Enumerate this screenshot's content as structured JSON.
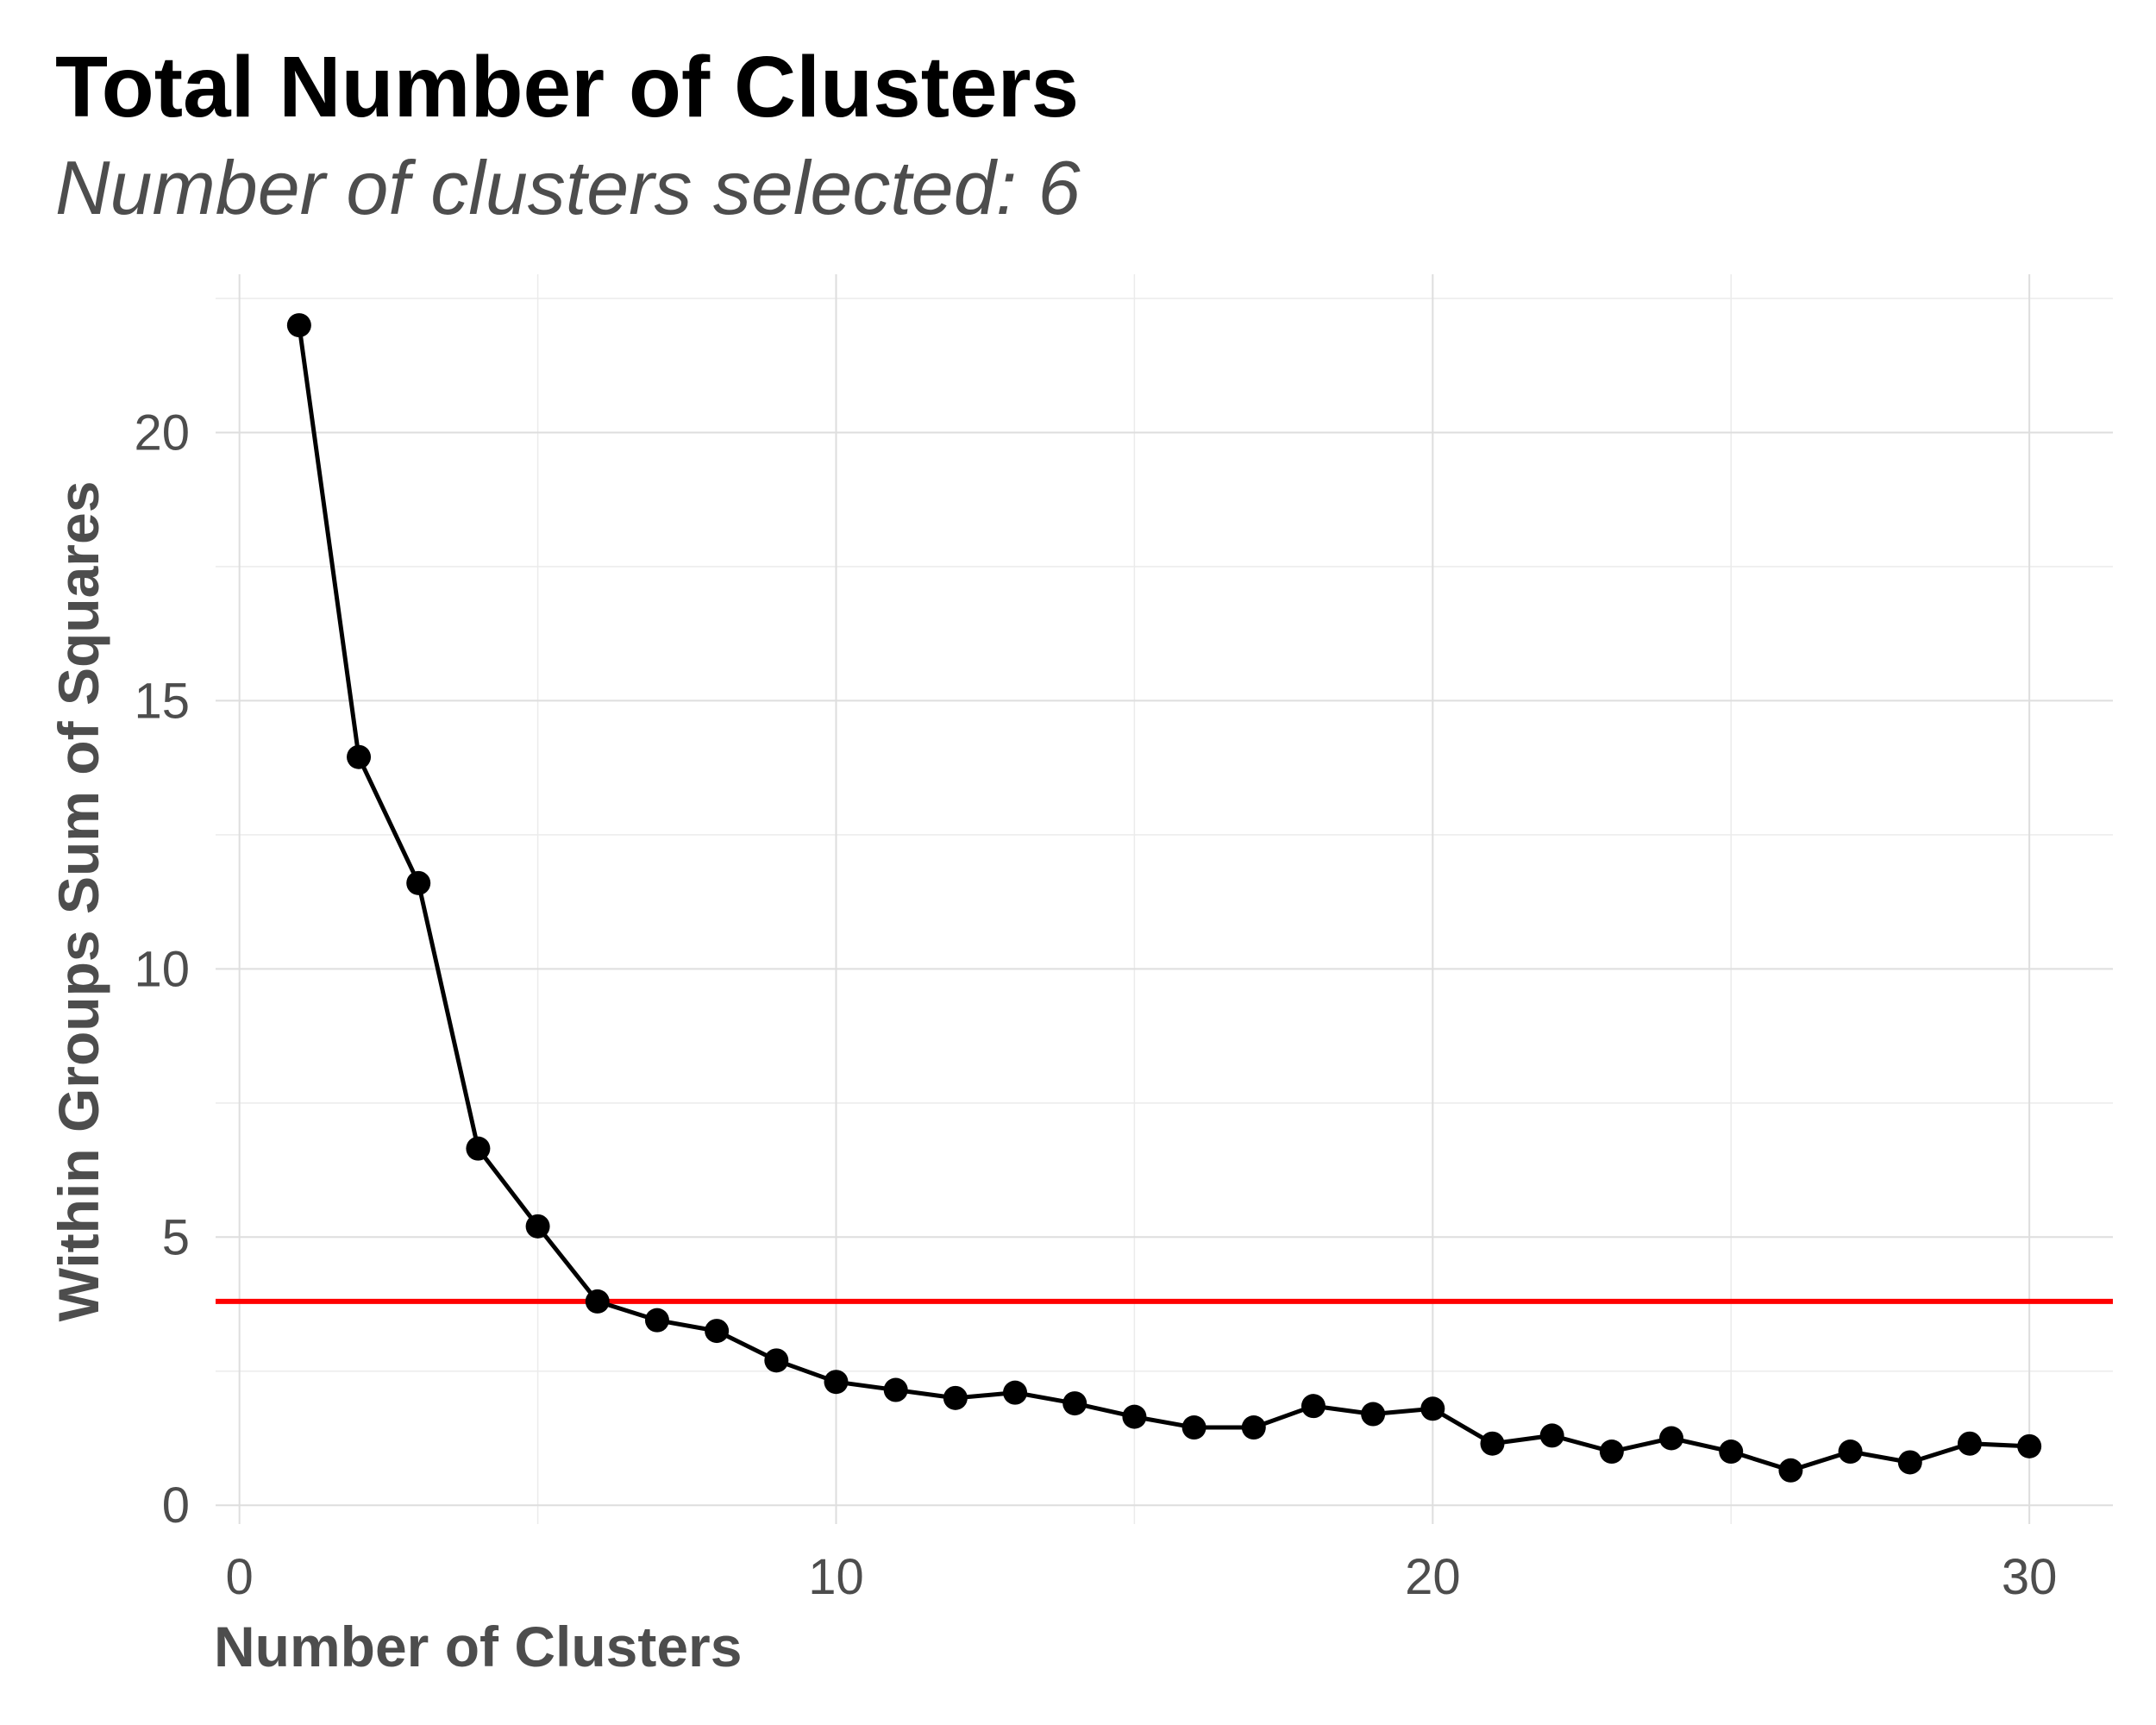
{
  "chart_data": {
    "type": "line",
    "title": "Total Number of Clusters",
    "subtitle": "Number of clusters selected: 6",
    "xlabel": "Number of Clusters",
    "ylabel": "Within Groups Sum of Squares",
    "x": [
      1,
      2,
      3,
      4,
      5,
      6,
      7,
      8,
      9,
      10,
      11,
      12,
      13,
      14,
      15,
      16,
      17,
      18,
      19,
      20,
      21,
      22,
      23,
      24,
      25,
      26,
      27,
      28,
      29,
      30
    ],
    "series": [
      {
        "values": [
          22.0,
          13.95,
          11.6,
          6.65,
          5.2,
          3.8,
          3.45,
          3.25,
          2.7,
          2.3,
          2.15,
          2.0,
          2.1,
          1.9,
          1.65,
          1.45,
          1.45,
          1.85,
          1.7,
          1.8,
          1.15,
          1.3,
          1.0,
          1.25,
          1.0,
          0.65,
          1.0,
          0.8,
          1.15,
          1.1
        ]
      }
    ],
    "hline": {
      "y": 3.8,
      "color": "#ff0000"
    },
    "xlim": [
      -0.4,
      31.4
    ],
    "ylim": [
      -0.35,
      22.95
    ],
    "x_ticks": [
      0,
      10,
      20,
      30
    ],
    "y_ticks": [
      0,
      5,
      10,
      15,
      20
    ],
    "x_ticks_minor": [
      5,
      15,
      25
    ],
    "y_ticks_minor": [
      2.5,
      7.5,
      12.5,
      17.5,
      22.5
    ],
    "grid": true,
    "line_color": "#000000",
    "point_color": "#000000",
    "grid_color": "#dedede"
  }
}
